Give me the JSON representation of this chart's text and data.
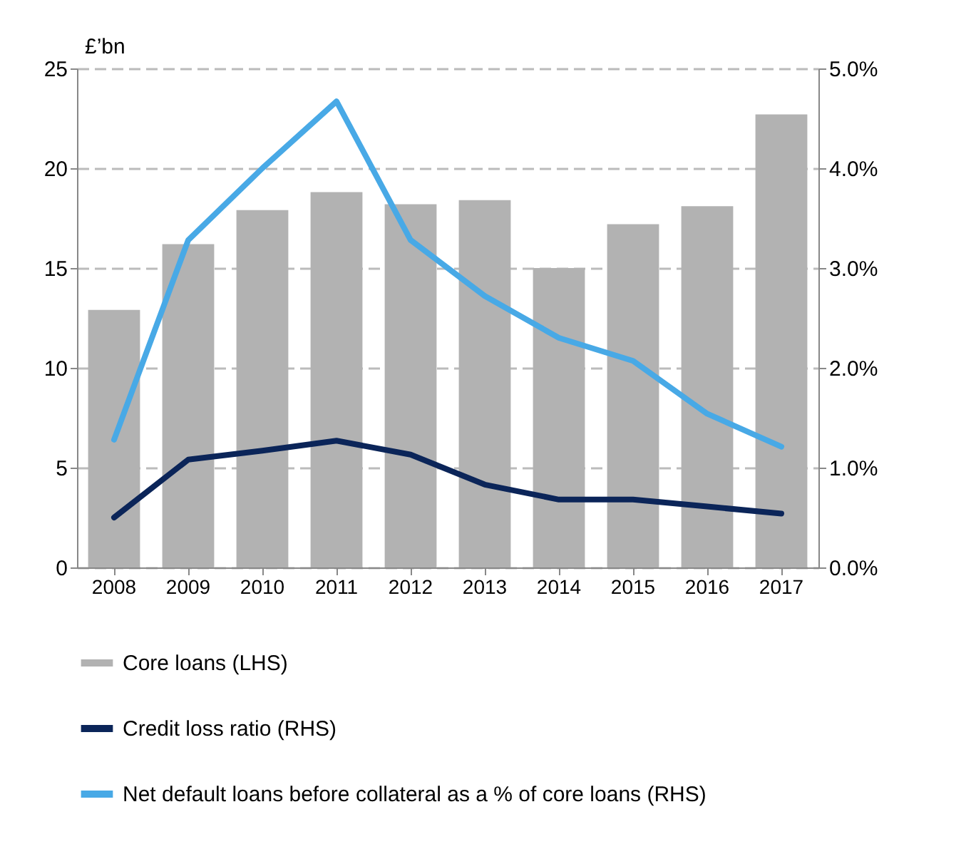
{
  "chart_data": {
    "type": "bar",
    "ylabel": "£’bn",
    "categories": [
      "2008",
      "2009",
      "2010",
      "2011",
      "2012",
      "2013",
      "2014",
      "2015",
      "2016",
      "2017"
    ],
    "series": [
      {
        "name": "Core loans (LHS)",
        "color": "#b2b2b2",
        "values": [
          12.9,
          16.2,
          17.9,
          18.8,
          18.2,
          18.4,
          15.0,
          17.2,
          18.1,
          22.7
        ]
      },
      {
        "name": "Credit loss ratio (RHS)",
        "type": "line",
        "axis": "y2",
        "color": "#0b2559",
        "values": [
          0.5,
          1.08,
          1.17,
          1.27,
          1.13,
          0.83,
          0.68,
          0.68,
          0.61,
          0.54
        ]
      },
      {
        "name": "Net default loans before collateral as a % of core loans (RHS)",
        "type": "line",
        "axis": "y2",
        "color": "#48a9e6",
        "values": [
          1.28,
          3.28,
          4.0,
          4.67,
          3.28,
          2.72,
          2.3,
          2.07,
          1.54,
          1.21
        ]
      }
    ],
    "ylim": [
      0,
      25
    ],
    "yticks": [
      0,
      5,
      10,
      15,
      20,
      25
    ],
    "y2lim": [
      0,
      5
    ],
    "y2ticks": [
      {
        "value": 0,
        "label": "0.0%"
      },
      {
        "value": 1,
        "label": "1.0%"
      },
      {
        "value": 2,
        "label": "2.0%"
      },
      {
        "value": 3,
        "label": "3.0%"
      },
      {
        "value": 4,
        "label": "4.0%"
      },
      {
        "value": 5,
        "label": "5.0%"
      }
    ],
    "grid": "y",
    "legend": "bottom"
  }
}
